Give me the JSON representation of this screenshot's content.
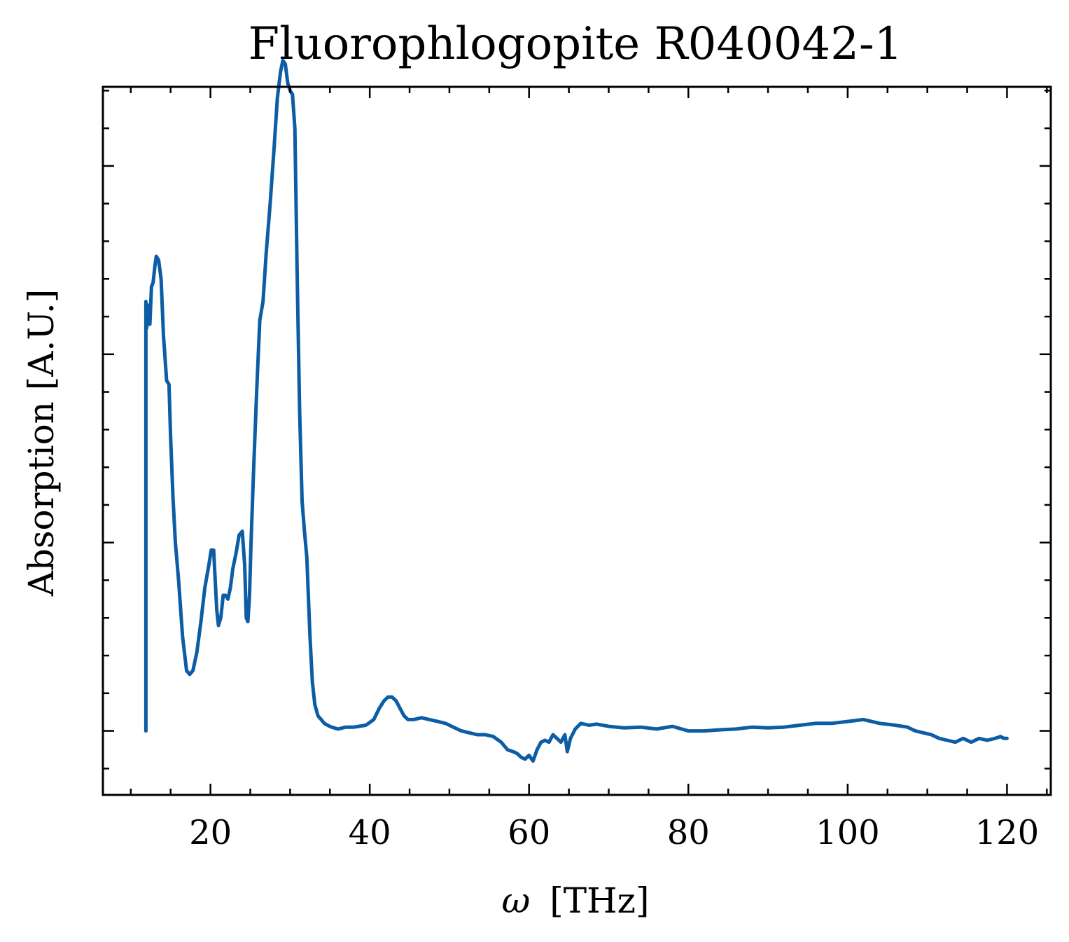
{
  "chart_data": {
    "type": "line",
    "title": "Fluorophlogopite R040042-1",
    "xlabel_symbol": "ω",
    "xlabel_unit": "[THz]",
    "ylabel": "Absorption [A.U.]",
    "xlim": [
      6.5,
      125.5
    ],
    "ylim": [
      -0.17,
      1.71
    ],
    "x_ticks": [
      20,
      40,
      60,
      80,
      100,
      120
    ],
    "x_tick_labels": [
      "20",
      "40",
      "60",
      "80",
      "100",
      "120"
    ],
    "x_minor_step": 5,
    "y_ticks": [
      0,
      0.5,
      1.0,
      1.5
    ],
    "y_tick_labels_shown": false,
    "y_minor_step": 0.1,
    "grid": false,
    "legend": "none",
    "series": [
      {
        "color": "#0c5da5",
        "x": [
          11.9,
          11.9,
          12.0,
          12.2,
          12.4,
          12.6,
          12.8,
          13.0,
          13.2,
          13.5,
          13.8,
          14.1,
          14.5,
          14.8,
          15.0,
          15.3,
          15.6,
          16.0,
          16.5,
          17.0,
          17.4,
          17.8,
          18.3,
          18.8,
          19.3,
          19.8,
          20.1,
          20.4,
          20.6,
          20.8,
          21.0,
          21.3,
          21.6,
          21.9,
          22.2,
          22.5,
          22.8,
          23.2,
          23.6,
          24.0,
          24.3,
          24.5,
          24.7,
          24.9,
          25.1,
          25.4,
          25.8,
          26.2,
          26.6,
          27.0,
          27.5,
          28.0,
          28.4,
          28.8,
          29.1,
          29.4,
          29.7,
          30.0,
          30.3,
          30.6,
          30.9,
          31.2,
          31.5,
          31.8,
          32.1,
          32.5,
          32.8,
          33.1,
          33.5,
          33.9,
          34.3,
          34.7,
          35.2,
          36.0,
          37.0,
          38.0,
          39.5,
          40.5,
          41.2,
          41.8,
          42.3,
          42.8,
          43.3,
          43.8,
          44.3,
          44.8,
          45.5,
          46.5,
          47.5,
          48.5,
          49.5,
          50.5,
          51.5,
          52.5,
          53.5,
          54.5,
          55.5,
          56.5,
          57.3,
          58.0,
          58.5,
          59.0,
          59.5,
          60.0,
          60.5,
          61.0,
          61.5,
          62.0,
          62.5,
          63.0,
          63.5,
          64.0,
          64.5,
          64.8,
          65.2,
          65.8,
          66.5,
          67.5,
          68.5,
          70.0,
          72.0,
          74.0,
          76.0,
          78.0,
          80.0,
          82.0,
          84.0,
          86.0,
          88.0,
          90.0,
          92.0,
          94.0,
          96.0,
          98.0,
          100.0,
          102.0,
          104.0,
          106.0,
          107.5,
          108.5,
          109.5,
          110.5,
          111.5,
          112.5,
          113.5,
          114.5,
          115.5,
          116.5,
          117.5,
          118.5,
          119.2,
          119.6,
          120.0
        ],
        "y": [
          0.0,
          1.14,
          1.07,
          1.13,
          1.08,
          1.18,
          1.19,
          1.23,
          1.26,
          1.25,
          1.2,
          1.05,
          0.93,
          0.92,
          0.78,
          0.62,
          0.5,
          0.4,
          0.25,
          0.16,
          0.15,
          0.16,
          0.21,
          0.29,
          0.38,
          0.44,
          0.48,
          0.48,
          0.4,
          0.32,
          0.28,
          0.3,
          0.36,
          0.36,
          0.35,
          0.38,
          0.43,
          0.47,
          0.52,
          0.53,
          0.44,
          0.3,
          0.29,
          0.36,
          0.5,
          0.68,
          0.9,
          1.09,
          1.14,
          1.27,
          1.4,
          1.55,
          1.68,
          1.75,
          1.78,
          1.77,
          1.72,
          1.7,
          1.69,
          1.6,
          1.2,
          0.85,
          0.61,
          0.53,
          0.46,
          0.25,
          0.13,
          0.07,
          0.04,
          0.03,
          0.02,
          0.015,
          0.01,
          0.005,
          0.01,
          0.01,
          0.015,
          0.03,
          0.06,
          0.08,
          0.09,
          0.09,
          0.08,
          0.06,
          0.04,
          0.03,
          0.03,
          0.035,
          0.03,
          0.025,
          0.02,
          0.01,
          0.0,
          -0.005,
          -0.01,
          -0.01,
          -0.015,
          -0.03,
          -0.05,
          -0.055,
          -0.06,
          -0.07,
          -0.075,
          -0.065,
          -0.08,
          -0.05,
          -0.03,
          -0.025,
          -0.03,
          -0.01,
          -0.02,
          -0.03,
          -0.01,
          -0.055,
          -0.02,
          0.005,
          0.02,
          0.015,
          0.018,
          0.012,
          0.008,
          0.01,
          0.005,
          0.012,
          0.0,
          0.0,
          0.003,
          0.005,
          0.01,
          0.008,
          0.01,
          0.015,
          0.02,
          0.02,
          0.025,
          0.03,
          0.02,
          0.015,
          0.01,
          0.0,
          -0.005,
          -0.01,
          -0.02,
          -0.025,
          -0.03,
          -0.02,
          -0.03,
          -0.02,
          -0.025,
          -0.02,
          -0.015,
          -0.02,
          -0.02
        ]
      }
    ]
  }
}
